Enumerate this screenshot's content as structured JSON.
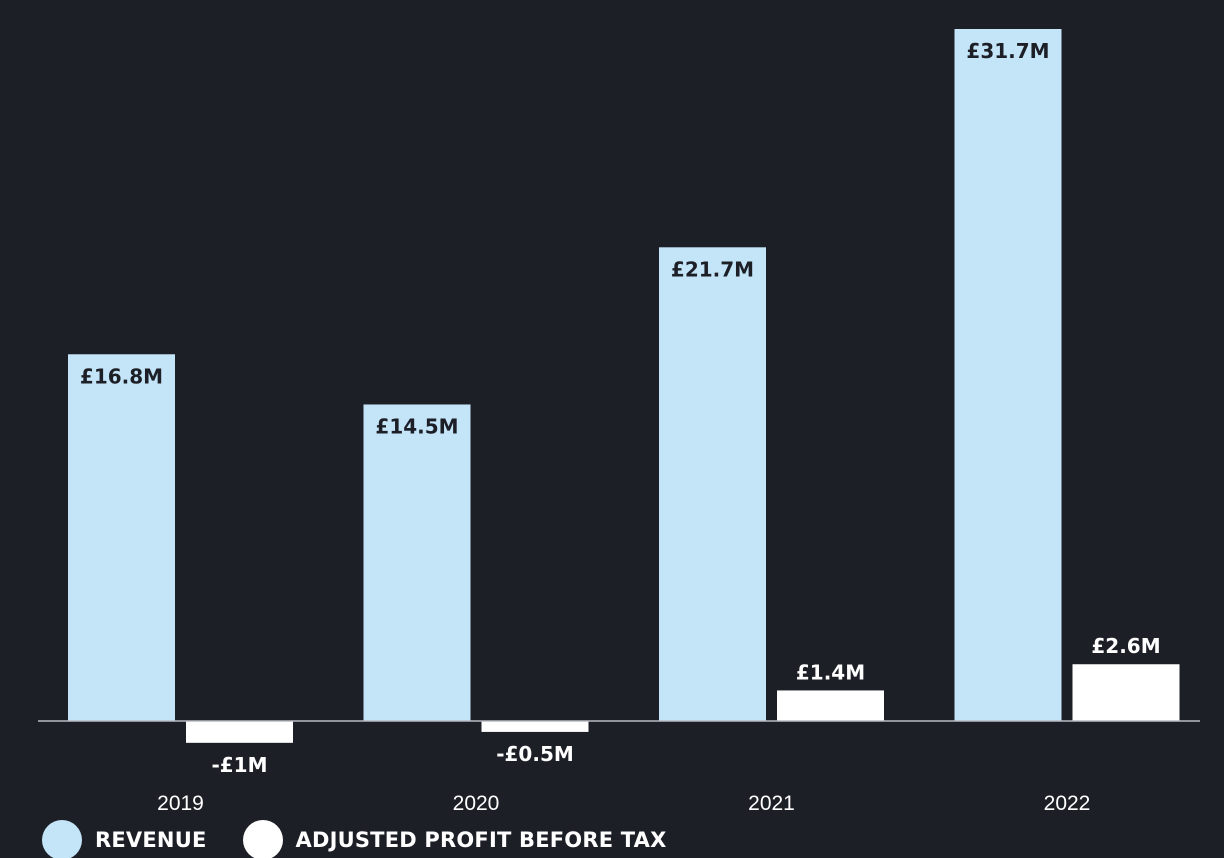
{
  "chart_data": {
    "type": "bar",
    "categories": [
      "2019",
      "2020",
      "2021",
      "2022"
    ],
    "series": [
      {
        "name": "REVENUE",
        "values": [
          16.8,
          14.5,
          21.7,
          31.7
        ],
        "labels": [
          "£16.8M",
          "£14.5M",
          "£21.7M",
          "£31.7M"
        ],
        "color": "#c4e4f8"
      },
      {
        "name": "ADJUSTED PROFIT BEFORE TAX",
        "values": [
          -1,
          -0.5,
          1.4,
          2.6
        ],
        "labels": [
          "-£1M",
          "-£0.5M",
          "£1.4M",
          "£2.6M"
        ],
        "color": "#ffffff"
      }
    ],
    "title": "",
    "xlabel": "",
    "ylabel": "",
    "ylim": [
      -1,
      31.7
    ],
    "grid": false,
    "legend": "bottom-left"
  },
  "colors": {
    "background": "#1d1f27",
    "baseline": "#b9bcc4",
    "revenue_label": "#1d1f27",
    "profit_label": "#ffffff",
    "tick_label": "#ffffff"
  }
}
